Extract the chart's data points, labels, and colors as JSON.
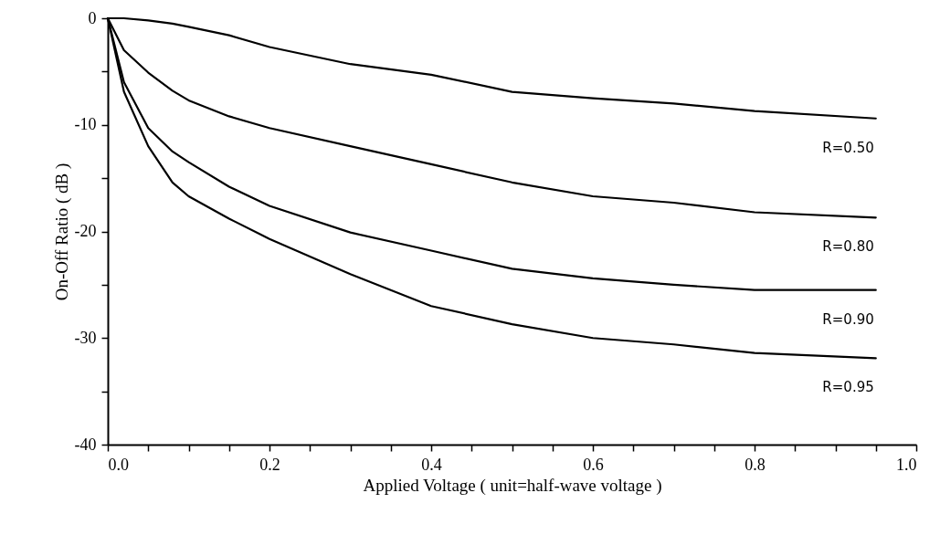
{
  "chart_data": {
    "type": "line",
    "xlabel": "Applied Voltage ( unit=half-wave voltage )",
    "ylabel": "On-Off Ratio ( dB )",
    "xlim": [
      0,
      1
    ],
    "ylim": [
      -40,
      0
    ],
    "xticks": [
      {
        "value": 0,
        "label": "0.0"
      },
      {
        "value": 0.05,
        "label": null
      },
      {
        "value": 0.1,
        "label": null
      },
      {
        "value": 0.15,
        "label": null
      },
      {
        "value": 0.2,
        "label": "0.2"
      },
      {
        "value": 0.25,
        "label": null
      },
      {
        "value": 0.3,
        "label": null
      },
      {
        "value": 0.35,
        "label": null
      },
      {
        "value": 0.4,
        "label": "0.4"
      },
      {
        "value": 0.45,
        "label": null
      },
      {
        "value": 0.5,
        "label": null
      },
      {
        "value": 0.55,
        "label": null
      },
      {
        "value": 0.6,
        "label": "0.6"
      },
      {
        "value": 0.65,
        "label": null
      },
      {
        "value": 0.7,
        "label": null
      },
      {
        "value": 0.75,
        "label": null
      },
      {
        "value": 0.8,
        "label": "0.8"
      },
      {
        "value": 0.85,
        "label": null
      },
      {
        "value": 0.9,
        "label": null
      },
      {
        "value": 0.95,
        "label": null
      },
      {
        "value": 1,
        "label": "1.0"
      }
    ],
    "yticks": [
      0,
      {
        "value": -5,
        "label": null
      },
      -10,
      {
        "value": -15,
        "label": null
      },
      -20,
      {
        "value": -25,
        "label": null
      },
      -30,
      {
        "value": -35,
        "label": null
      },
      -40
    ],
    "grid": false,
    "marker": "none",
    "line_style": "solid",
    "x": [
      0,
      0.02,
      0.05,
      0.08,
      0.1,
      0.15,
      0.2,
      0.3,
      0.4,
      0.5,
      0.6,
      0.7,
      0.8,
      0.95
    ],
    "series": [
      {
        "name": "R=0.50",
        "color": "#000000",
        "values": [
          0,
          0,
          -0.2,
          -0.5,
          -0.8,
          -1.6,
          -2.7,
          -4.3,
          -5.3,
          -6.9,
          -7.5,
          -8,
          -8.7,
          -9.4
        ]
      },
      {
        "name": "R=0.80",
        "color": "#000000",
        "values": [
          0,
          -3,
          -5.1,
          -6.8,
          -7.7,
          -9.2,
          -10.3,
          -12,
          -13.7,
          -15.4,
          -16.7,
          -17.3,
          -18.2,
          -18.7
        ]
      },
      {
        "name": "R=0.90",
        "color": "#000000",
        "values": [
          0,
          -6,
          -10.3,
          -12.5,
          -13.5,
          -15.8,
          -17.6,
          -20.1,
          -21.8,
          -23.5,
          -24.4,
          -25,
          -25.5,
          -25.5
        ]
      },
      {
        "name": "R=0.95",
        "color": "#000000",
        "values": [
          0,
          -6.9,
          -12,
          -15.4,
          -16.7,
          -18.8,
          -20.7,
          -24,
          -27,
          -28.7,
          -30,
          -30.6,
          -31.4,
          -31.9
        ]
      }
    ]
  }
}
